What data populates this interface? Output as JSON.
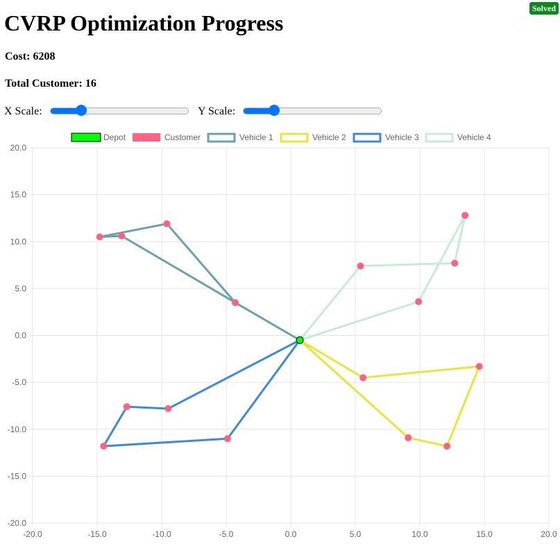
{
  "status_badge": "Solved",
  "title": "CVRP Optimization Progress",
  "cost_label": "Cost: 6208",
  "total_customers_label": "Total Customer: 16",
  "controls": {
    "x_scale_label": "X Scale:",
    "y_scale_label": "Y Scale:",
    "x_scale_level": 0.22,
    "y_scale_level": 0.22
  },
  "colors": {
    "depot": "#00ff00",
    "depot_border": "#000000",
    "customer": "#ff6384",
    "vehicle_1": "#6aa2ae",
    "vehicle_2": "#ede33a",
    "vehicle_3": "#3f8ad8",
    "vehicle_4": "#c7eadb",
    "grid": "#e5e5e5",
    "tick_text": "#666666",
    "slider_accent": "#0075ff",
    "badge": "#0a8a18"
  },
  "chart_data": {
    "type": "scatter",
    "xlim": [
      -20,
      20
    ],
    "ylim": [
      -20,
      20
    ],
    "x_ticks": [
      "-20.0",
      "-15.0",
      "-10.0",
      "-5.0",
      "0.0",
      "5.0",
      "10.0",
      "15.0",
      "20.0"
    ],
    "y_ticks": [
      "20.0",
      "15.0",
      "10.0",
      "5.0",
      "0.0",
      "-5.0",
      "-10.0",
      "-15.0",
      "-20.0"
    ],
    "x_tick_values": [
      -20,
      -15,
      -10,
      -5,
      0,
      5,
      10,
      15,
      20
    ],
    "y_tick_values": [
      20,
      15,
      10,
      5,
      0,
      -5,
      -10,
      -15,
      -20
    ],
    "grid": true,
    "legend_position": "top",
    "legend": [
      "Depot",
      "Customer",
      "Vehicle 1",
      "Vehicle 2",
      "Vehicle 3",
      "Vehicle 4"
    ],
    "depot": {
      "x": 0.7,
      "y": -0.5
    },
    "customers": [
      {
        "x": -14.8,
        "y": 10.5
      },
      {
        "x": -13.1,
        "y": 10.6
      },
      {
        "x": -9.6,
        "y": 11.9
      },
      {
        "x": -4.3,
        "y": 3.5
      },
      {
        "x": 5.4,
        "y": 7.4
      },
      {
        "x": 12.7,
        "y": 7.7
      },
      {
        "x": 13.5,
        "y": 12.8
      },
      {
        "x": 9.9,
        "y": 3.6
      },
      {
        "x": 5.6,
        "y": -4.5
      },
      {
        "x": 14.6,
        "y": -3.3
      },
      {
        "x": 12.1,
        "y": -11.8
      },
      {
        "x": 9.1,
        "y": -10.9
      },
      {
        "x": -9.5,
        "y": -7.8
      },
      {
        "x": -12.7,
        "y": -7.6
      },
      {
        "x": -14.5,
        "y": -11.8
      },
      {
        "x": -4.9,
        "y": -11.0
      }
    ],
    "series": [
      {
        "name": "Vehicle 1",
        "points": [
          [
            0.7,
            -0.5
          ],
          [
            -4.3,
            3.5
          ],
          [
            -9.6,
            11.9
          ],
          [
            -14.8,
            10.5
          ],
          [
            -13.1,
            10.6
          ],
          [
            -4.3,
            3.5
          ],
          [
            0.7,
            -0.5
          ]
        ]
      },
      {
        "name": "Vehicle 2",
        "points": [
          [
            0.7,
            -0.5
          ],
          [
            5.6,
            -4.5
          ],
          [
            14.6,
            -3.3
          ],
          [
            12.1,
            -11.8
          ],
          [
            9.1,
            -10.9
          ],
          [
            0.7,
            -0.5
          ]
        ]
      },
      {
        "name": "Vehicle 3",
        "points": [
          [
            0.7,
            -0.5
          ],
          [
            -9.5,
            -7.8
          ],
          [
            -12.7,
            -7.6
          ],
          [
            -14.5,
            -11.8
          ],
          [
            -4.9,
            -11.0
          ],
          [
            0.7,
            -0.5
          ]
        ]
      },
      {
        "name": "Vehicle 4",
        "points": [
          [
            0.7,
            -0.5
          ],
          [
            9.9,
            3.6
          ],
          [
            13.5,
            12.8
          ],
          [
            12.7,
            7.7
          ],
          [
            5.4,
            7.4
          ],
          [
            0.7,
            -0.5
          ]
        ]
      }
    ]
  }
}
